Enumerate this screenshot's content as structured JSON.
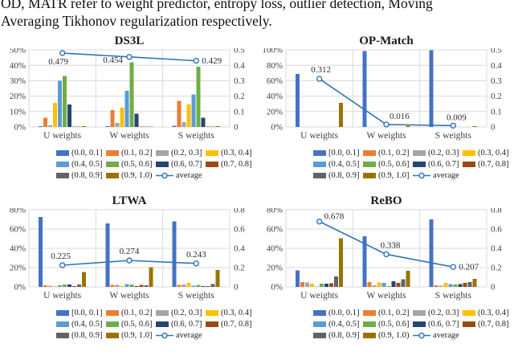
{
  "caption": {
    "line1": "OD, MATR refer to weight predictor, entropy loss, outlier detection, Moving",
    "line2": "Averaging Tikhonov regularization respectively."
  },
  "palette": {
    "bins": [
      "#4472C4",
      "#ED7D31",
      "#A5A5A5",
      "#FFC000",
      "#5B9BD5",
      "#70AD47",
      "#264478",
      "#9E480E",
      "#636363",
      "#997300"
    ],
    "line": "#2E75B6",
    "grid": "#D9D9D9",
    "tick_text": "#404040"
  },
  "chart_data": [
    {
      "title": "DS3L",
      "type": "bar+line",
      "categories": [
        "U weights",
        "W weights",
        "S weights"
      ],
      "left_axis": {
        "ticks": [
          "0%",
          "10%",
          "20%",
          "30%",
          "40%",
          "50%"
        ],
        "max": 50
      },
      "right_axis": {
        "ticks": [
          "0",
          "0.1",
          "0.2",
          "0.3",
          "0.4",
          "0.5"
        ],
        "max": 0.5
      },
      "series": [
        {
          "name": "(0.0, 0.1]",
          "values": [
            0.5,
            0.5,
            0.7
          ]
        },
        {
          "name": "(0.1, 0.2]",
          "values": [
            6,
            11,
            17
          ]
        },
        {
          "name": "(0.2, 0.3]",
          "values": [
            1,
            2.5,
            3
          ]
        },
        {
          "name": "(0.3, 0.4]",
          "values": [
            15.5,
            12.5,
            14.5
          ]
        },
        {
          "name": "(0.4, 0.5]",
          "values": [
            30,
            23.5,
            21
          ]
        },
        {
          "name": "(0.5, 0.6]",
          "values": [
            33,
            42,
            39
          ]
        },
        {
          "name": "(0.6, 0.7]",
          "values": [
            14.5,
            8.5,
            6
          ]
        },
        {
          "name": "(0.7, 0.8]",
          "values": [
            0.3,
            0.2,
            0.2
          ]
        },
        {
          "name": "(0.8, 0.9]",
          "values": [
            0.2,
            0.2,
            0.2
          ]
        },
        {
          "name": "(0.9, 1.0)",
          "values": [
            0.5,
            0.3,
            0.5
          ]
        }
      ],
      "average": {
        "name": "average",
        "values": [
          0.479,
          0.454,
          0.429
        ],
        "labels": [
          "0.479",
          "0.454",
          "0.429"
        ],
        "label_offsets": [
          [
            -5,
            14,
            "middle"
          ],
          [
            -8,
            7,
            "end"
          ],
          [
            7,
            3.5,
            "start"
          ]
        ]
      }
    },
    {
      "title": "OP-Match",
      "type": "bar+line",
      "categories": [
        "U weights",
        "W weights",
        "S weights"
      ],
      "left_axis": {
        "ticks": [
          "0%",
          "20%",
          "40%",
          "60%",
          "80%",
          "100%"
        ],
        "max": 100
      },
      "right_axis": {
        "ticks": [
          "0",
          "0.1",
          "0.2",
          "0.3",
          "0.4",
          "0.5"
        ],
        "max": 0.5
      },
      "series": [
        {
          "name": "[0.0, 0.1]",
          "values": [
            68.5,
            98.5,
            99.5
          ]
        },
        {
          "name": "(0.1, 0.2]",
          "values": [
            0.2,
            0.1,
            0.1
          ]
        },
        {
          "name": "(0.2, 0.3]",
          "values": [
            0.1,
            0.1,
            0.1
          ]
        },
        {
          "name": "(0.3, 0.4]",
          "values": [
            0.2,
            0.1,
            0.1
          ]
        },
        {
          "name": "(0.4, 0.5]",
          "values": [
            0.1,
            0.1,
            0.1
          ]
        },
        {
          "name": "(0.5, 0.6]",
          "values": [
            0.1,
            0.1,
            0.1
          ]
        },
        {
          "name": "(0.6, 0.7]",
          "values": [
            0.1,
            0.1,
            0.1
          ]
        },
        {
          "name": "(0.7, 0.8]",
          "values": [
            0.1,
            0.1,
            0.1
          ]
        },
        {
          "name": "(0.8, 0.9]",
          "values": [
            0.2,
            0.1,
            0.1
          ]
        },
        {
          "name": "(0.9, 1.0]",
          "values": [
            31,
            1.5,
            1.0
          ]
        }
      ],
      "average": {
        "name": "average",
        "values": [
          0.312,
          0.016,
          0.009
        ],
        "labels": [
          "0.312",
          "0.016",
          "0.009"
        ],
        "label_offsets": [
          [
            2,
            -8,
            "middle"
          ],
          [
            4,
            -7,
            "start"
          ],
          [
            4,
            -7,
            "middle"
          ]
        ]
      }
    },
    {
      "title": "LTWA",
      "type": "bar+line",
      "categories": [
        "U weights",
        "W weights",
        "S weights"
      ],
      "left_axis": {
        "ticks": [
          "0%",
          "20%",
          "40%",
          "60%",
          "80%"
        ],
        "max": 80
      },
      "right_axis": {
        "ticks": [
          "0",
          "0.2",
          "0.4",
          "0.6",
          "0.8"
        ],
        "max": 0.8
      },
      "series": [
        {
          "name": "[0.0, 0.1]",
          "values": [
            72.5,
            66,
            68
          ]
        },
        {
          "name": "(0.1, 0.2]",
          "values": [
            1.5,
            2.2,
            2.2
          ]
        },
        {
          "name": "(0.2, 0.3]",
          "values": [
            1.2,
            2.2,
            2.5
          ]
        },
        {
          "name": "(0.3, 0.4]",
          "values": [
            0.8,
            1.0,
            4.0
          ]
        },
        {
          "name": "(0.4, 0.5]",
          "values": [
            1.8,
            2.8,
            1.2
          ]
        },
        {
          "name": "(0.5, 0.6]",
          "values": [
            2.3,
            2.3,
            2.0
          ]
        },
        {
          "name": "(0.6, 0.7]",
          "values": [
            2.3,
            1.0,
            1.0
          ]
        },
        {
          "name": "(0.7, 0.8]",
          "values": [
            1.0,
            2.2,
            0.8
          ]
        },
        {
          "name": "(0.8, 0.9]",
          "values": [
            2.3,
            1.5,
            3.0
          ]
        },
        {
          "name": "(0.9, 1.0]",
          "values": [
            15.5,
            20.5,
            17.5
          ]
        }
      ],
      "average": {
        "name": "average",
        "values": [
          0.225,
          0.274,
          0.243
        ],
        "labels": [
          "0.225",
          "0.274",
          "0.243"
        ],
        "label_offsets": [
          [
            -2,
            -8,
            "middle"
          ],
          [
            0,
            -8,
            "middle"
          ],
          [
            0,
            -8,
            "middle"
          ]
        ]
      }
    },
    {
      "title": "ReBO",
      "type": "bar+line",
      "categories": [
        "U weights",
        "W weights",
        "S weights"
      ],
      "left_axis": {
        "ticks": [
          "0%",
          "20%",
          "40%",
          "60%",
          "80%"
        ],
        "max": 80
      },
      "right_axis": {
        "ticks": [
          "0",
          "0.2",
          "0.4",
          "0.6",
          "0.8"
        ],
        "max": 0.8
      },
      "series": [
        {
          "name": "(0.0, 0.1]",
          "values": [
            17,
            52.5,
            70
          ]
        },
        {
          "name": "(0.1, 0.2]",
          "values": [
            5,
            5,
            1.5
          ]
        },
        {
          "name": "(0.2, 0.3]",
          "values": [
            4.5,
            1.5,
            1.2
          ]
        },
        {
          "name": "(0.3, 0.4]",
          "values": [
            3.5,
            4.5,
            4
          ]
        },
        {
          "name": "(0.4, 0.5]",
          "values": [
            0.5,
            4,
            3
          ]
        },
        {
          "name": "(0.5, 0.6]",
          "values": [
            3.5,
            1,
            2.5
          ]
        },
        {
          "name": "(0.6, 0.7]",
          "values": [
            3.2,
            6,
            3
          ]
        },
        {
          "name": "(0.7, 0.8]",
          "values": [
            3.8,
            4,
            4
          ]
        },
        {
          "name": "(0.8, 0.9]",
          "values": [
            11,
            8,
            5
          ]
        },
        {
          "name": "(0.9, 1.0)",
          "values": [
            50.5,
            16.5,
            8.5
          ]
        }
      ],
      "average": {
        "name": "average",
        "values": [
          0.678,
          0.338,
          0.207
        ],
        "labels": [
          "0.678",
          "0.338",
          "0.207"
        ],
        "label_offsets": [
          [
            6,
            -3,
            "start"
          ],
          [
            5,
            -8,
            "middle"
          ],
          [
            7,
            3.5,
            "start"
          ]
        ]
      }
    }
  ]
}
